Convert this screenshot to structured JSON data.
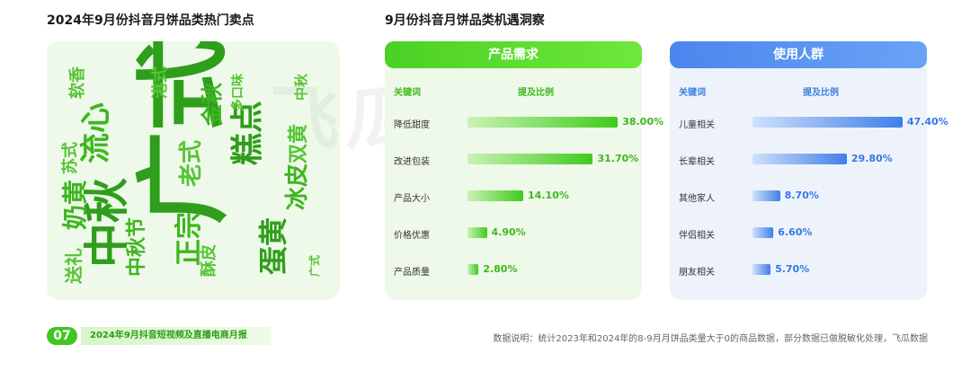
{
  "left_title": "2024年9月份抖音月饼品类热门卖点",
  "right_title": "9月份抖音月饼品类机遇洞察",
  "watermark": "飞瓜数据",
  "word_cloud": [
    {
      "text": "广式",
      "color": "#2f9e1b"
    },
    {
      "text": "中秋",
      "color": "#2f9e1b"
    },
    {
      "text": "流心",
      "color": "#3fb61f"
    },
    {
      "text": "糕点",
      "color": "#2f9e1b"
    },
    {
      "text": "冰皮",
      "color": "#3fb61f"
    },
    {
      "text": "蛋黄",
      "color": "#2f9e1b"
    },
    {
      "text": "正宗",
      "color": "#3fb61f"
    },
    {
      "text": "奶黄",
      "color": "#3fb61f"
    },
    {
      "text": "老式",
      "color": "#56c435"
    },
    {
      "text": "金秋",
      "color": "#3fb61f"
    },
    {
      "text": "中秋节",
      "color": "#3fb61f"
    },
    {
      "text": "双黄",
      "color": "#56c435"
    },
    {
      "text": "送礼",
      "color": "#56c435"
    },
    {
      "text": "苏式",
      "color": "#56c435"
    },
    {
      "text": "酥皮",
      "color": "#56c435"
    },
    {
      "text": "港式",
      "color": "#56c435"
    },
    {
      "text": "多口味",
      "color": "#56c435"
    },
    {
      "text": "中秋",
      "color": "#56c435"
    },
    {
      "text": "广式",
      "color": "#56c435"
    },
    {
      "text": "软香",
      "color": "#56c435"
    }
  ],
  "chart_data": [
    {
      "type": "bar",
      "title": "产品需求",
      "columns": [
        "关键词",
        "提及比例"
      ],
      "categories": [
        "降低甜度",
        "改进包装",
        "产品大小",
        "价格优惠",
        "产品质量"
      ],
      "values": [
        38.0,
        31.7,
        14.1,
        4.9,
        2.8
      ],
      "value_labels": [
        "38.00%",
        "31.70%",
        "14.10%",
        "4.90%",
        "2.80%"
      ],
      "ylim": [
        0,
        40
      ],
      "color": "#3fcb1c"
    },
    {
      "type": "bar",
      "title": "使用人群",
      "columns": [
        "关键词",
        "提及比例"
      ],
      "categories": [
        "儿童相关",
        "长辈相关",
        "其他家人",
        "伴侣相关",
        "朋友相关"
      ],
      "values": [
        47.4,
        29.8,
        8.7,
        6.6,
        5.7
      ],
      "value_labels": [
        "47.40%",
        "29.80%",
        "8.70%",
        "6.60%",
        "5.70%"
      ],
      "ylim": [
        0,
        50
      ],
      "color": "#3f7fe8"
    }
  ],
  "footer": {
    "page_number": "07",
    "report_title": "2024年9月抖音短视频及直播电商月报",
    "note": "数据说明：统计2023年和2024年的8-9月月饼品类量大于0的商品数据，部分数据已做脱敏化处理，飞瓜数据"
  }
}
